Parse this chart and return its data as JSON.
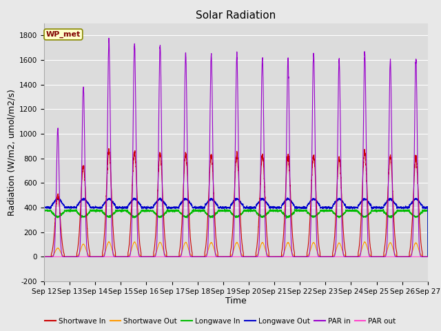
{
  "title": "Solar Radiation",
  "xlabel": "Time",
  "ylabel": "Radiation (W/m2, umol/m2/s)",
  "ylim": [
    -200,
    1900
  ],
  "yticks": [
    -200,
    0,
    200,
    400,
    600,
    800,
    1000,
    1200,
    1400,
    1600,
    1800
  ],
  "num_days": 15,
  "background_color": "#dcdcdc",
  "fig_background_color": "#e8e8e8",
  "grid_color": "#ffffff",
  "legend_label": "WP_met",
  "series": {
    "shortwave_in": {
      "color": "#cc0000",
      "label": "Shortwave In"
    },
    "shortwave_out": {
      "color": "#ff9900",
      "label": "Shortwave Out"
    },
    "longwave_in": {
      "color": "#00bb00",
      "label": "Longwave In"
    },
    "longwave_out": {
      "color": "#0000cc",
      "label": "Longwave Out"
    },
    "par_in": {
      "color": "#9900cc",
      "label": "PAR in"
    },
    "par_out": {
      "color": "#ff44cc",
      "label": "PAR out"
    }
  },
  "xtick_labels": [
    "Sep 12",
    "Sep 13",
    "Sep 14",
    "Sep 15",
    "Sep 16",
    "Sep 17",
    "Sep 18",
    "Sep 19",
    "Sep 20",
    "Sep 21",
    "Sep 22",
    "Sep 23",
    "Sep 24",
    "Sep 25",
    "Sep 26",
    "Sep 27"
  ],
  "sw_peaks": [
    500,
    730,
    860,
    850,
    840,
    835,
    825,
    830,
    820,
    820,
    825,
    800,
    850,
    820,
    800
  ],
  "par_peaks": [
    1040,
    1380,
    1760,
    1730,
    1720,
    1650,
    1650,
    1640,
    1620,
    1610,
    1660,
    1600,
    1660,
    1600,
    1600
  ],
  "title_fontsize": 11,
  "axis_label_fontsize": 9,
  "tick_fontsize": 7.5
}
